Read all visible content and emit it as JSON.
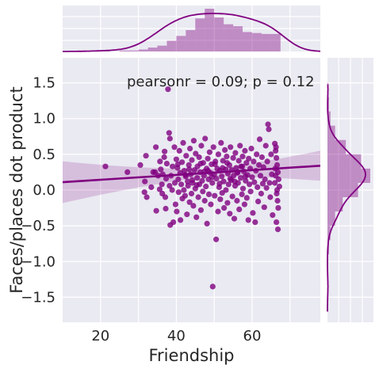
{
  "chart_data": {
    "type": "scatter",
    "title": "",
    "xlabel": "Friendship",
    "ylabel": "Faces/places dot product",
    "xlim": [
      10,
      78
    ],
    "ylim": [
      -1.85,
      1.85
    ],
    "xticks": [
      "20",
      "40",
      "60"
    ],
    "yticks": [
      "1.5",
      "1.0",
      "0.5",
      "0.0",
      "−0.5",
      "−1.0",
      "−1.5"
    ],
    "annotation": "pearsonr = 0.09; p = 0.12",
    "grid": true,
    "color": "#800080",
    "regression": {
      "x": [
        10,
        78
      ],
      "y": [
        0.11,
        0.34
      ]
    },
    "x_hist": {
      "bins": [
        20,
        22.5,
        25,
        27.5,
        30,
        32.5,
        35,
        37.5,
        40,
        42.5,
        45,
        47.5,
        50,
        52.5,
        55,
        57.5,
        60,
        62.5,
        65,
        67.5
      ],
      "counts": [
        1,
        0,
        1,
        1,
        2,
        4,
        6,
        11,
        16,
        22,
        34,
        44,
        35,
        28,
        26,
        20,
        19,
        18,
        18
      ]
    },
    "y_hist": {
      "bins": [
        -1.7,
        -1.5,
        -1.3,
        -1.1,
        -0.9,
        -0.7,
        -0.5,
        -0.3,
        -0.1,
        0.1,
        0.3,
        0.5,
        0.7,
        0.9,
        1.1,
        1.3,
        1.5
      ],
      "counts": [
        1,
        0,
        1,
        1,
        2,
        4,
        10,
        20,
        40,
        56,
        44,
        24,
        10,
        4,
        2,
        1
      ]
    },
    "points": [
      [
        21.3,
        0.33
      ],
      [
        27.1,
        0.25
      ],
      [
        30.5,
        0.35
      ],
      [
        31.6,
        -0.03
      ],
      [
        31.7,
        0.12
      ],
      [
        32.0,
        0.48
      ],
      [
        32.2,
        -0.1
      ],
      [
        33.4,
        0.04
      ],
      [
        33.9,
        0.25
      ],
      [
        34.4,
        0.25
      ],
      [
        34.6,
        0.6
      ],
      [
        34.7,
        -0.29
      ],
      [
        35.2,
        0.2
      ],
      [
        35.6,
        0.01
      ],
      [
        35.7,
        0.4
      ],
      [
        35.9,
        0.29
      ],
      [
        36.2,
        0.08
      ],
      [
        36.3,
        -0.05
      ],
      [
        36.8,
        0.46
      ],
      [
        36.9,
        0.54
      ],
      [
        37.1,
        -0.1
      ],
      [
        37.2,
        -0.26
      ],
      [
        37.3,
        0.16
      ],
      [
        37.5,
        0.37
      ],
      [
        37.8,
        1.41
      ],
      [
        38.1,
        0.8
      ],
      [
        38.3,
        0.72
      ],
      [
        38.4,
        -0.49
      ],
      [
        38.6,
        0.2
      ],
      [
        38.9,
        0.0
      ],
      [
        39.0,
        0.33
      ],
      [
        39.2,
        -0.45
      ],
      [
        39.5,
        0.6
      ],
      [
        39.6,
        0.1
      ],
      [
        39.8,
        -0.2
      ],
      [
        40.0,
        0.43
      ],
      [
        40.1,
        -0.3
      ],
      [
        40.3,
        0.31
      ],
      [
        40.5,
        0.15
      ],
      [
        40.6,
        -0.03
      ],
      [
        40.8,
        0.55
      ],
      [
        41.0,
        0.24
      ],
      [
        41.1,
        -0.42
      ],
      [
        41.3,
        0.08
      ],
      [
        41.5,
        0.39
      ],
      [
        41.6,
        -0.12
      ],
      [
        41.8,
        0.66
      ],
      [
        42.0,
        0.0
      ],
      [
        42.1,
        0.27
      ],
      [
        42.3,
        -0.08
      ],
      [
        42.5,
        0.19
      ],
      [
        42.6,
        0.48
      ],
      [
        42.8,
        -0.34
      ],
      [
        43.0,
        0.12
      ],
      [
        43.1,
        0.06
      ],
      [
        43.3,
        0.35
      ],
      [
        43.5,
        -0.17
      ],
      [
        43.6,
        0.58
      ],
      [
        43.8,
        0.22
      ],
      [
        44.0,
        -0.05
      ],
      [
        44.1,
        0.42
      ],
      [
        44.3,
        0.1
      ],
      [
        44.5,
        -0.22
      ],
      [
        44.6,
        0.69
      ],
      [
        44.8,
        0.28
      ],
      [
        45.0,
        0.02
      ],
      [
        45.1,
        0.51
      ],
      [
        45.3,
        -0.38
      ],
      [
        45.5,
        0.17
      ],
      [
        45.6,
        0.33
      ],
      [
        45.8,
        -0.1
      ],
      [
        46.0,
        0.46
      ],
      [
        46.1,
        0.08
      ],
      [
        46.3,
        0.25
      ],
      [
        46.5,
        -0.28
      ],
      [
        46.6,
        0.62
      ],
      [
        46.8,
        0.13
      ],
      [
        47.0,
        -0.02
      ],
      [
        47.1,
        0.38
      ],
      [
        47.3,
        0.2
      ],
      [
        47.5,
        -0.15
      ],
      [
        47.6,
        0.72
      ],
      [
        47.8,
        0.05
      ],
      [
        48.0,
        0.3
      ],
      [
        48.1,
        -0.47
      ],
      [
        48.3,
        0.44
      ],
      [
        48.5,
        0.15
      ],
      [
        48.6,
        -0.06
      ],
      [
        48.8,
        0.53
      ],
      [
        49.0,
        0.24
      ],
      [
        49.1,
        -0.2
      ],
      [
        49.3,
        0.36
      ],
      [
        49.5,
        0.1
      ],
      [
        49.6,
        -1.35
      ],
      [
        49.8,
        0.6
      ],
      [
        50.0,
        0.22
      ],
      [
        50.1,
        -0.08
      ],
      [
        50.3,
        0.4
      ],
      [
        50.5,
        -0.69
      ],
      [
        50.6,
        0.16
      ],
      [
        50.8,
        0.3
      ],
      [
        51.0,
        -0.3
      ],
      [
        51.1,
        0.5
      ],
      [
        51.3,
        0.04
      ],
      [
        51.5,
        0.27
      ],
      [
        51.6,
        -0.13
      ],
      [
        51.8,
        0.66
      ],
      [
        52.0,
        0.19
      ],
      [
        52.1,
        -0.04
      ],
      [
        52.3,
        0.41
      ],
      [
        52.5,
        0.12
      ],
      [
        52.6,
        -0.25
      ],
      [
        52.8,
        0.56
      ],
      [
        53.0,
        0.29
      ],
      [
        53.1,
        0.0
      ],
      [
        53.3,
        0.47
      ],
      [
        53.5,
        -0.18
      ],
      [
        53.6,
        0.23
      ],
      [
        53.8,
        0.08
      ],
      [
        54.0,
        0.35
      ],
      [
        54.1,
        -0.33
      ],
      [
        54.3,
        0.6
      ],
      [
        54.5,
        0.14
      ],
      [
        54.6,
        0.28
      ],
      [
        54.8,
        -0.09
      ],
      [
        55.0,
        0.45
      ],
      [
        55.1,
        0.2
      ],
      [
        55.3,
        -0.4
      ],
      [
        55.5,
        0.06
      ],
      [
        55.6,
        0.52
      ],
      [
        55.8,
        0.31
      ],
      [
        56.0,
        -0.15
      ],
      [
        56.1,
        0.24
      ],
      [
        56.3,
        0.1
      ],
      [
        56.5,
        0.41
      ],
      [
        56.6,
        -0.27
      ],
      [
        56.8,
        0.62
      ],
      [
        57.0,
        0.17
      ],
      [
        57.1,
        0.33
      ],
      [
        57.3,
        -0.06
      ],
      [
        57.5,
        0.47
      ],
      [
        57.6,
        0.02
      ],
      [
        57.8,
        0.26
      ],
      [
        58.0,
        -0.2
      ],
      [
        58.1,
        0.55
      ],
      [
        58.3,
        0.13
      ],
      [
        58.5,
        0.38
      ],
      [
        58.6,
        -0.11
      ],
      [
        58.8,
        0.21
      ],
      [
        59.0,
        -0.42
      ],
      [
        59.1,
        0.44
      ],
      [
        59.3,
        0.08
      ],
      [
        59.5,
        0.3
      ],
      [
        59.6,
        -0.02
      ],
      [
        59.8,
        0.58
      ],
      [
        60.0,
        0.18
      ],
      [
        60.2,
        -0.32
      ],
      [
        60.4,
        0.4
      ],
      [
        60.6,
        0.11
      ],
      [
        60.8,
        -0.45
      ],
      [
        61.0,
        0.27
      ],
      [
        61.2,
        0.5
      ],
      [
        61.4,
        0.04
      ],
      [
        61.6,
        -0.16
      ],
      [
        61.8,
        0.35
      ],
      [
        62.0,
        0.71
      ],
      [
        62.2,
        0.2
      ],
      [
        62.4,
        -0.05
      ],
      [
        62.6,
        0.46
      ],
      [
        62.8,
        0.09
      ],
      [
        63.0,
        0.32
      ],
      [
        63.2,
        -0.24
      ],
      [
        63.4,
        0.15
      ],
      [
        63.6,
        0.62
      ],
      [
        63.8,
        0.03
      ],
      [
        64.0,
        0.4
      ],
      [
        64.2,
        0.92
      ],
      [
        64.4,
        0.85
      ],
      [
        64.6,
        0.1
      ],
      [
        64.8,
        -0.1
      ],
      [
        65.0,
        0.5
      ],
      [
        65.2,
        0.22
      ],
      [
        65.4,
        -0.35
      ],
      [
        66.0,
        0.65
      ],
      [
        66.2,
        0.55
      ],
      [
        66.4,
        0.45
      ],
      [
        66.6,
        0.35
      ],
      [
        66.8,
        0.25
      ],
      [
        67.0,
        0.15
      ],
      [
        67.2,
        0.05
      ],
      [
        66.5,
        -0.05
      ],
      [
        66.7,
        -0.15
      ],
      [
        66.9,
        -0.25
      ],
      [
        66.3,
        0.6
      ],
      [
        66.1,
        0.3
      ],
      [
        66.6,
        0.0
      ],
      [
        66.4,
        -0.45
      ],
      [
        66.8,
        -0.55
      ],
      [
        66.2,
        0.2
      ],
      [
        66.0,
        0.1
      ],
      [
        44.2,
        0.14
      ],
      [
        46.4,
        0.37
      ],
      [
        48.4,
        0.27
      ],
      [
        50.2,
        0.36
      ],
      [
        52.2,
        0.31
      ],
      [
        54.2,
        0.16
      ],
      [
        56.2,
        0.25
      ],
      [
        58.2,
        0.19
      ],
      [
        43.4,
        0.29
      ],
      [
        45.4,
        0.07
      ],
      [
        47.4,
        0.26
      ],
      [
        49.4,
        0.18
      ],
      [
        51.4,
        0.09
      ],
      [
        53.4,
        0.38
      ],
      [
        55.4,
        0.12
      ],
      [
        57.4,
        0.33
      ],
      [
        42.4,
        0.21
      ],
      [
        40.4,
        0.36
      ],
      [
        38.2,
        0.06
      ],
      [
        36.4,
        0.22
      ]
    ]
  }
}
